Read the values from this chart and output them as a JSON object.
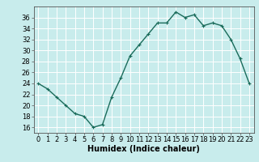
{
  "x": [
    0,
    1,
    2,
    3,
    4,
    5,
    6,
    7,
    8,
    9,
    10,
    11,
    12,
    13,
    14,
    15,
    16,
    17,
    18,
    19,
    20,
    21,
    22,
    23
  ],
  "y": [
    24,
    23,
    21.5,
    20,
    18.5,
    18,
    16,
    16.5,
    21.5,
    25,
    29,
    31,
    33,
    35,
    35,
    37,
    36,
    36.5,
    34.5,
    35,
    34.5,
    32,
    28.5,
    24
  ],
  "line_color": "#1a6b5a",
  "marker": "+",
  "marker_color": "#1a6b5a",
  "bg_color": "#c8ecec",
  "grid_color": "#ffffff",
  "xlabel": "Humidex (Indice chaleur)",
  "xlim": [
    -0.5,
    23.5
  ],
  "ylim": [
    15,
    38
  ],
  "yticks": [
    16,
    18,
    20,
    22,
    24,
    26,
    28,
    30,
    32,
    34,
    36
  ],
  "xticks": [
    0,
    1,
    2,
    3,
    4,
    5,
    6,
    7,
    8,
    9,
    10,
    11,
    12,
    13,
    14,
    15,
    16,
    17,
    18,
    19,
    20,
    21,
    22,
    23
  ],
  "xlabel_fontsize": 7,
  "tick_fontsize": 6,
  "marker_size": 3,
  "line_width": 1.0
}
